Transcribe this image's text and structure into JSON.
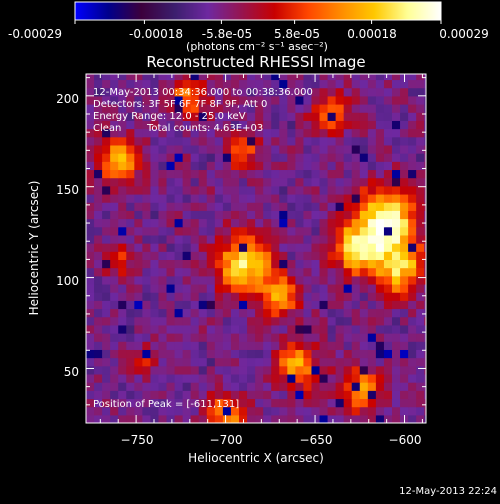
{
  "colorbar": {
    "tick_labels": [
      "-0.00029",
      "-0.00018",
      "-5.8e-05",
      "5.8e-05",
      "0.00018",
      "0.00029"
    ],
    "tick_values": [
      -0.00029,
      -0.00018,
      -5.8e-05,
      5.8e-05,
      0.00018,
      0.00029
    ],
    "unit_label": "(photons cm⁻² s⁻¹ asec⁻²)",
    "range": [
      -0.00029,
      0.00029
    ],
    "stops": [
      "#0000ff",
      "#00008c",
      "#3c003c",
      "#3c1e6e",
      "#6e28a0",
      "#961450",
      "#c80000",
      "#ff4600",
      "#ff8c00",
      "#ffc800",
      "#ffff96",
      "#ffffff"
    ]
  },
  "chart_data": {
    "type": "heatmap",
    "title": "Reconstructed RHESSI Image",
    "xlabel": "Heliocentric X (arcsec)",
    "ylabel": "Heliocentric Y (arcsec)",
    "xlim": [
      -778,
      -588
    ],
    "ylim": [
      20,
      212
    ],
    "x_ticks": [
      -750,
      -700,
      -650,
      -600
    ],
    "y_ticks": [
      50,
      100,
      150,
      200
    ],
    "x_tick_labels": [
      "−750",
      "−700",
      "−650",
      "−600"
    ],
    "y_tick_labels": [
      "50",
      "100",
      "150",
      "200"
    ],
    "grid": false,
    "colormap": "rhessi",
    "peak_position": [
      -611,
      131
    ],
    "sources": [
      {
        "x": -611,
        "y": 131,
        "sigma": 12,
        "amp": 1.0
      },
      {
        "x": -603,
        "y": 105,
        "sigma": 10,
        "amp": 0.7
      },
      {
        "x": -628,
        "y": 115,
        "sigma": 9,
        "amp": 0.7
      },
      {
        "x": -690,
        "y": 108,
        "sigma": 11,
        "amp": 0.8
      },
      {
        "x": -670,
        "y": 90,
        "sigma": 8,
        "amp": 0.6
      },
      {
        "x": -660,
        "y": 52,
        "sigma": 9,
        "amp": 0.6
      },
      {
        "x": -625,
        "y": 38,
        "sigma": 9,
        "amp": 0.55
      },
      {
        "x": -700,
        "y": 25,
        "sigma": 8,
        "amp": 0.55
      },
      {
        "x": -760,
        "y": 165,
        "sigma": 9,
        "amp": 0.6
      },
      {
        "x": -720,
        "y": 200,
        "sigma": 8,
        "amp": 0.5
      },
      {
        "x": -690,
        "y": 170,
        "sigma": 7,
        "amp": 0.45
      },
      {
        "x": -640,
        "y": 190,
        "sigma": 8,
        "amp": 0.45
      },
      {
        "x": -760,
        "y": 110,
        "sigma": 6,
        "amp": 0.4
      },
      {
        "x": -745,
        "y": 55,
        "sigma": 6,
        "amp": 0.3
      }
    ]
  },
  "overlay": {
    "line1": "12-May-2013 00:34:36.000 to 00:38:36.000",
    "line2": "Detectors: 3F 5F 6F 7F 8F 9F, Att 0",
    "line3": "Energy Range: 12.0 - 25.0 keV",
    "line4_a": "Clean",
    "line4_b": "Total counts: 4.63E+03",
    "peak_label": "Position of Peak = [-611,131]"
  },
  "footer": {
    "timestamp": "12-May-2013 22:24"
  }
}
